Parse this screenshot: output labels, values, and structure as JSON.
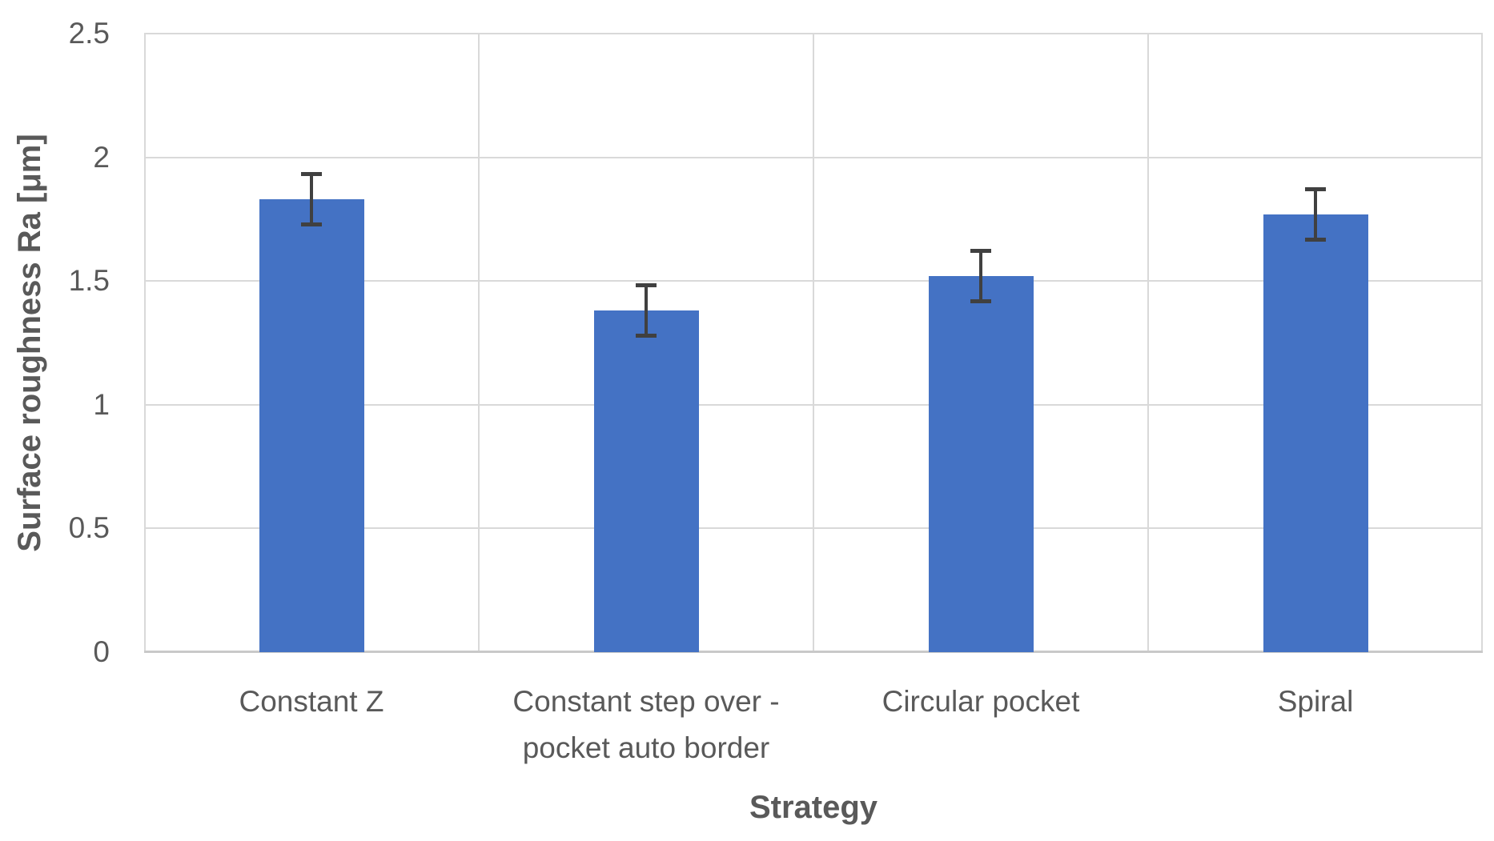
{
  "chart_data": {
    "type": "bar",
    "xlabel": "Strategy",
    "ylabel": "Surface roughness Ra [μm]",
    "categories": [
      "Constant Z",
      "Constant step over -\npocket auto border",
      "Circular pocket",
      "Spiral"
    ],
    "values": [
      1.83,
      1.38,
      1.52,
      1.77
    ],
    "error_bars": [
      0.11,
      0.11,
      0.11,
      0.11
    ],
    "ylim": [
      0,
      2.5
    ],
    "yticks": [
      0,
      0.5,
      1,
      1.5,
      2,
      2.5
    ],
    "ytick_labels": [
      "0",
      "0.5",
      "1",
      "1.5",
      "2",
      "2.5"
    ],
    "grid": true,
    "legend": false,
    "colors": {
      "bar": "#4472C4",
      "error_bar": "#404040",
      "gridline": "#D9D9D9",
      "axis_line": "#C9C9C9",
      "tick_text": "#595959",
      "title_text": "#595959",
      "background": "#FFFFFF"
    }
  }
}
